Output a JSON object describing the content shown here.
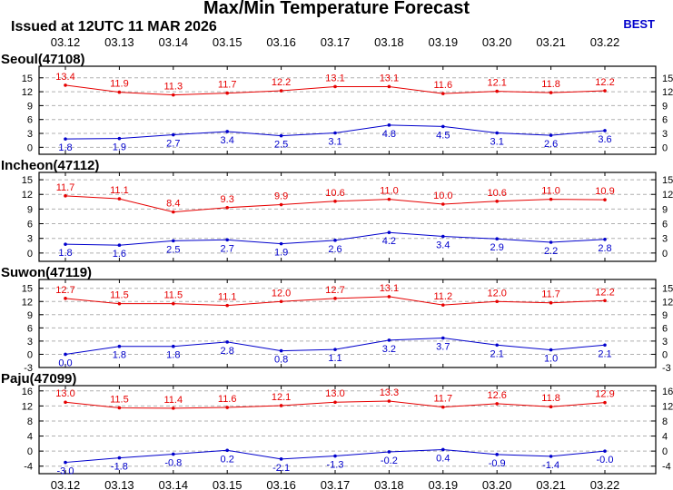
{
  "title": "Max/Min Temperature Forecast",
  "issued": "Issued at 12UTC 11 MAR 2026",
  "badge": "BEST",
  "colors": {
    "max": "#e60000",
    "min": "#0000cc",
    "grid": "#b0b0b0",
    "axis": "#000000"
  },
  "chart_data": {
    "type": "line",
    "dates": [
      "03.12",
      "03.13",
      "03.14",
      "03.15",
      "03.16",
      "03.17",
      "03.18",
      "03.19",
      "03.20",
      "03.21",
      "03.22"
    ],
    "panels": [
      {
        "station": "Seoul(47108)",
        "yticks": [
          0,
          3,
          6,
          9,
          12,
          15
        ],
        "ylim": [
          -1.5,
          17.5
        ],
        "max": [
          13.4,
          11.9,
          11.3,
          11.7,
          12.2,
          13.1,
          13.1,
          11.6,
          12.1,
          11.8,
          12.2
        ],
        "max_labels": [
          "13.4",
          "11.9",
          "11.3",
          "11.7",
          "12.2",
          "13.1",
          "13.1",
          "11.6",
          "12.1",
          "11.8",
          "12.2"
        ],
        "min": [
          1.8,
          1.9,
          2.7,
          3.4,
          2.5,
          3.1,
          4.8,
          4.5,
          3.1,
          2.6,
          3.6
        ],
        "min_labels": [
          "1.8",
          "1.9",
          "2.7",
          "3.4",
          "2.5",
          "3.1",
          "4.8",
          "4.5",
          "3.1",
          "2.6",
          "3.6"
        ]
      },
      {
        "station": "Incheon(47112)",
        "yticks": [
          0,
          3,
          6,
          9,
          12,
          15
        ],
        "ylim": [
          -1.7,
          16.5
        ],
        "max": [
          11.7,
          11.1,
          8.4,
          9.3,
          9.9,
          10.6,
          11.0,
          10.0,
          10.6,
          11.0,
          10.9
        ],
        "max_labels": [
          "11.7",
          "11.1",
          "8.4",
          "9.3",
          "9.9",
          "10.6",
          "11.0",
          "10.0",
          "10.6",
          "11.0",
          "10.9"
        ],
        "min": [
          1.8,
          1.6,
          2.5,
          2.7,
          1.9,
          2.6,
          4.2,
          3.4,
          2.9,
          2.2,
          2.8
        ],
        "min_labels": [
          "1.8",
          "1.6",
          "2.5",
          "2.7",
          "1.9",
          "2.6",
          "4.2",
          "3.4",
          "2.9",
          "2.2",
          "2.8"
        ]
      },
      {
        "station": "Suwon(47119)",
        "yticks": [
          -3,
          0,
          3,
          6,
          9,
          12,
          15
        ],
        "ylim": [
          -3.0,
          17.0
        ],
        "max": [
          12.7,
          11.5,
          11.5,
          11.1,
          12.0,
          12.7,
          13.1,
          11.2,
          12.0,
          11.7,
          12.2
        ],
        "max_labels": [
          "12.7",
          "11.5",
          "11.5",
          "11.1",
          "12.0",
          "12.7",
          "13.1",
          "11.2",
          "12.0",
          "11.7",
          "12.2"
        ],
        "min": [
          0.0,
          1.8,
          1.8,
          2.8,
          0.8,
          1.1,
          3.2,
          3.7,
          2.1,
          1.0,
          2.1
        ],
        "min_labels": [
          "0.0",
          "1.8",
          "1.8",
          "2.8",
          "0.8",
          "1.1",
          "3.2",
          "3.7",
          "2.1",
          "1.0",
          "2.1"
        ]
      },
      {
        "station": "Paju(47099)",
        "yticks": [
          -4,
          0,
          4,
          8,
          12,
          16
        ],
        "ylim": [
          -6.0,
          17.4
        ],
        "max": [
          13.0,
          11.5,
          11.4,
          11.6,
          12.1,
          13.0,
          13.3,
          11.7,
          12.6,
          11.8,
          12.9
        ],
        "max_labels": [
          "13.0",
          "11.5",
          "11.4",
          "11.6",
          "12.1",
          "13.0",
          "13.3",
          "11.7",
          "12.6",
          "11.8",
          "12.9"
        ],
        "min": [
          -3.0,
          -1.8,
          -0.8,
          0.2,
          -2.1,
          -1.3,
          -0.2,
          0.4,
          -0.9,
          -1.4,
          0.0
        ],
        "min_labels": [
          "-3.0",
          "-1.8",
          "-0.8",
          "0.2",
          "-2.1",
          "-1.3",
          "-0.2",
          "0.4",
          "-0.9",
          "-1.4",
          "-0.0"
        ]
      }
    ]
  }
}
